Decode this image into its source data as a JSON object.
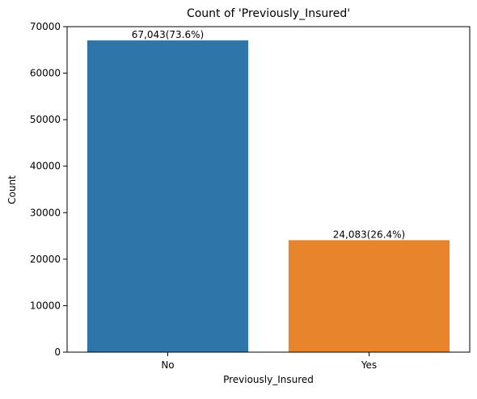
{
  "chart_data": {
    "type": "bar",
    "title": "Count of 'Previously_Insured'",
    "xlabel": "Previously_Insured",
    "ylabel": "Count",
    "categories": [
      "No",
      "Yes"
    ],
    "values": [
      67043,
      24083
    ],
    "data_labels": [
      "67,043(73.6%)",
      "24,083(26.4%)"
    ],
    "colors": [
      "#2e75a9",
      "#e8842b"
    ],
    "ylim": [
      0,
      70000
    ],
    "yticks": [
      "0",
      "10000",
      "20000",
      "30000",
      "40000",
      "50000",
      "60000",
      "70000"
    ],
    "grid": false,
    "legend": "none"
  }
}
